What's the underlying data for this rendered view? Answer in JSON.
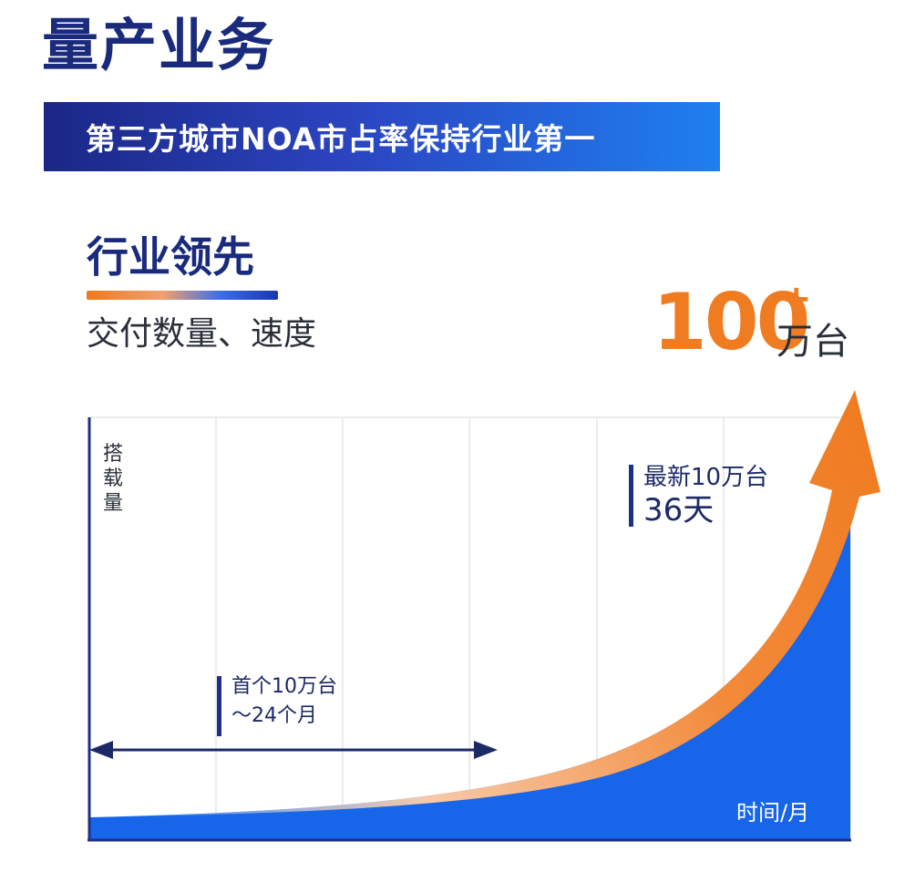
{
  "header": {
    "title": "量产业务",
    "banner_text": "第三方城市NOA市占率保持行业第一"
  },
  "section": {
    "subtitle": "行业领先",
    "description": "交付数量、速度"
  },
  "highlight": {
    "value": "100",
    "plus": "+",
    "unit": "万台"
  },
  "colors": {
    "navy": "#1a2a7c",
    "blue_fill": "#1765e8",
    "orange": "#f07c22"
  },
  "chart_data": {
    "type": "area",
    "ylabel": "搭载量",
    "xlabel": "时间/月",
    "grid": true,
    "annotations": [
      {
        "lines": [
          "首个10万台",
          "～24个月"
        ]
      },
      {
        "lines": [
          "最新10万台",
          "36天"
        ]
      }
    ],
    "icons": {
      "trend": "rising-arrow-icon",
      "span": "double-arrow-icon"
    }
  }
}
